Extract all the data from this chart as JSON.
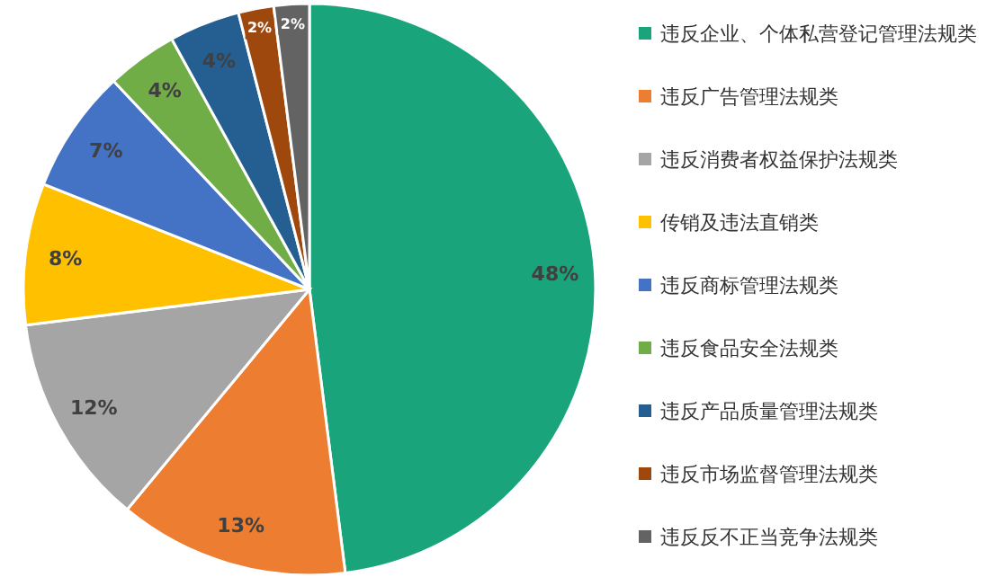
{
  "chart_data": {
    "type": "pie",
    "categories": [
      "违反企业、个体私营登记管理法规类",
      "违反广告管理法规类",
      "违反消费者权益保护法规类",
      "传销及违法直销类",
      "违反商标管理法规类",
      "违反食品安全法规类",
      "违反产品质量管理法规类",
      "违反市场监督管理法规类",
      "违反反不正当竞争法规类"
    ],
    "values": [
      48,
      13,
      12,
      8,
      7,
      4,
      4,
      2,
      2
    ],
    "value_labels": [
      "48%",
      "13%",
      "12%",
      "8%",
      "7%",
      "4%",
      "4%",
      "2%",
      "2%"
    ],
    "colors": [
      "#1aa47c",
      "#ed7d31",
      "#a5a5a5",
      "#ffc000",
      "#4472c4",
      "#70ad47",
      "#255e91",
      "#9e480e",
      "#636363"
    ],
    "legend": "right"
  }
}
